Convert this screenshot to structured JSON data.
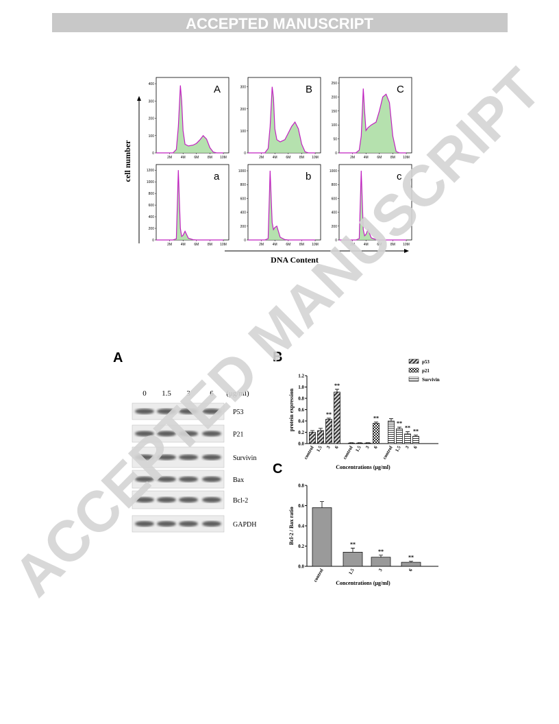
{
  "header": {
    "title": "ACCEPTED MANUSCRIPT"
  },
  "watermark": "ACCEPTED MANUSCRIPT",
  "figure1": {
    "y_label": "cell number",
    "x_label": "DNA Content",
    "xlim": [
      0,
      10
    ],
    "xticks": [
      {
        "value": 2,
        "label": "2M"
      },
      {
        "value": 4,
        "label": "4M"
      },
      {
        "value": 6,
        "label": "6M"
      },
      {
        "value": 8,
        "label": "8M"
      },
      {
        "value": 10,
        "label": "10M"
      }
    ],
    "x": [
      0,
      1,
      2,
      2.5,
      3,
      3.3,
      3.6,
      3.8,
      4,
      4.3,
      4.8,
      5.5,
      6,
      6.5,
      7,
      7.5,
      8,
      8.5,
      9,
      10
    ],
    "panels": [
      {
        "label": "A",
        "ylim": [
          0,
          420
        ],
        "yticks": [
          0,
          100,
          200,
          300,
          400
        ],
        "values": [
          0,
          0,
          0,
          0,
          20,
          150,
          390,
          300,
          130,
          50,
          40,
          45,
          55,
          75,
          100,
          80,
          30,
          5,
          0,
          0
        ]
      },
      {
        "label": "B",
        "ylim": [
          0,
          330
        ],
        "yticks": [
          0,
          100,
          200,
          300
        ],
        "values": [
          0,
          0,
          0,
          0,
          20,
          120,
          300,
          250,
          110,
          60,
          50,
          60,
          90,
          120,
          140,
          110,
          40,
          5,
          0,
          0
        ]
      },
      {
        "label": "C",
        "ylim": [
          0,
          260
        ],
        "yticks": [
          0,
          50,
          100,
          150,
          200,
          250
        ],
        "values": [
          0,
          0,
          0,
          0,
          10,
          60,
          230,
          150,
          80,
          90,
          100,
          110,
          150,
          200,
          210,
          180,
          60,
          5,
          0,
          0
        ]
      },
      {
        "label": "a",
        "ylim": [
          0,
          1250
        ],
        "yticks": [
          0,
          200,
          400,
          600,
          800,
          1000,
          1200
        ],
        "values": [
          0,
          0,
          0,
          0,
          20,
          1200,
          200,
          60,
          80,
          150,
          30,
          5,
          0,
          0,
          0,
          0,
          0,
          0,
          0,
          0
        ]
      },
      {
        "label": "b",
        "ylim": [
          0,
          1050
        ],
        "yticks": [
          0,
          200,
          400,
          600,
          800,
          1000
        ],
        "values": [
          0,
          0,
          0,
          0,
          20,
          1000,
          250,
          150,
          180,
          200,
          40,
          5,
          0,
          0,
          0,
          0,
          0,
          0,
          0,
          0
        ]
      },
      {
        "label": "c",
        "ylim": [
          0,
          1050
        ],
        "yticks": [
          0,
          200,
          400,
          600,
          800,
          1000
        ],
        "values": [
          0,
          0,
          0,
          0,
          20,
          1000,
          150,
          60,
          80,
          150,
          30,
          5,
          0,
          0,
          0,
          0,
          0,
          0,
          0,
          0
        ]
      }
    ]
  },
  "figure2": {
    "blot": {
      "label": "A",
      "concentrations": [
        "0",
        "1.5",
        "3",
        "6"
      ],
      "unit": "(μg/ml)",
      "rows": [
        "P53",
        "P21",
        "Survivin",
        "Bax",
        "Bcl-2",
        "GAPDH"
      ]
    },
    "chart_b": {
      "type": "bar",
      "label": "B",
      "y_label": "protein expression",
      "x_label": "Concentrations (μg/ml)",
      "categories": [
        "control",
        "1.5",
        "3",
        "6"
      ],
      "ylim": [
        0,
        1.2
      ],
      "yticks": [
        {
          "value": 0,
          "label": "0.0"
        },
        0.2,
        0.4,
        0.6,
        0.8,
        {
          "value": 1,
          "label": "1.0"
        },
        1.2
      ],
      "series": [
        {
          "name": "p53",
          "pattern": "diagonal",
          "values": [
            0.2,
            0.23,
            0.43,
            0.91
          ],
          "errors": [
            0.03,
            0.04,
            0.02,
            0.05
          ],
          "annotations": [
            null,
            null,
            "**",
            "**"
          ]
        },
        {
          "name": "p21",
          "pattern": "checker",
          "values": [
            0.01,
            0.01,
            0.01,
            0.36
          ],
          "errors": [
            0.005,
            0.005,
            0.005,
            0.02
          ],
          "annotations": [
            null,
            null,
            null,
            "**"
          ]
        },
        {
          "name": "Survivin",
          "pattern": "horizontal",
          "values": [
            0.4,
            0.26,
            0.17,
            0.13
          ],
          "errors": [
            0.04,
            0.03,
            0.04,
            0.02
          ],
          "annotations": [
            null,
            "**",
            "**",
            "**"
          ]
        }
      ]
    },
    "chart_c": {
      "type": "bar",
      "label": "C",
      "y_label": "Bcl-2 / Bax ratio",
      "x_label": "Concentrations (μg/ml)",
      "categories": [
        "control",
        "1.5",
        "3",
        "6"
      ],
      "ylim": [
        0,
        0.8
      ],
      "yticks": [
        {
          "value": 0,
          "label": "0.0"
        },
        0.2,
        0.4,
        0.6,
        0.8
      ],
      "color": "#9a9a9a",
      "values": [
        0.58,
        0.14,
        0.09,
        0.04
      ],
      "errors": [
        0.06,
        0.04,
        0.02,
        0.01
      ],
      "annotations": [
        null,
        "**",
        "**",
        "**"
      ]
    }
  }
}
